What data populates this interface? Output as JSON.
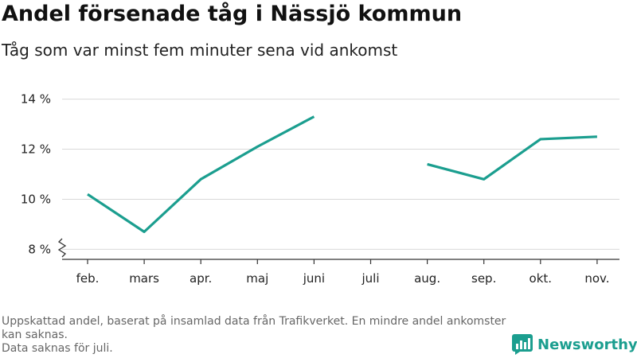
{
  "header": {
    "title": "Andel försenade tåg i Nässjö kommun",
    "subtitle": "Tåg som var minst fem minuter sena vid ankomst"
  },
  "footnote": {
    "line1": "Uppskattad andel, baserat på insamlad data från Trafikverket. En mindre andel ankomster kan saknas.",
    "line2": "Data saknas för juli."
  },
  "brand": {
    "name": "Newsworthy",
    "color": "#1b9e8f",
    "icon": "bar-chart-logo-icon"
  },
  "chart_data": {
    "type": "line",
    "title": "Andel försenade tåg i Nässjö kommun",
    "subtitle": "Tåg som var minst fem minuter sena vid ankomst",
    "categories": [
      "feb.",
      "mars",
      "apr.",
      "maj",
      "juni",
      "juli",
      "aug.",
      "sep.",
      "okt.",
      "nov."
    ],
    "series": [
      {
        "values": [
          10.2,
          8.7,
          10.8,
          12.1,
          13.3,
          null,
          11.4,
          10.8,
          12.4,
          12.5
        ],
        "color": "#1b9e8f"
      }
    ],
    "y_ticks": [
      8,
      10,
      12,
      14
    ],
    "y_tick_labels": [
      "8 %",
      "10 %",
      "12 %",
      "14 %"
    ],
    "ylim": [
      7.6,
      14.4
    ],
    "y_axis_break": true,
    "grid": true,
    "xlabel": "",
    "ylabel": ""
  }
}
